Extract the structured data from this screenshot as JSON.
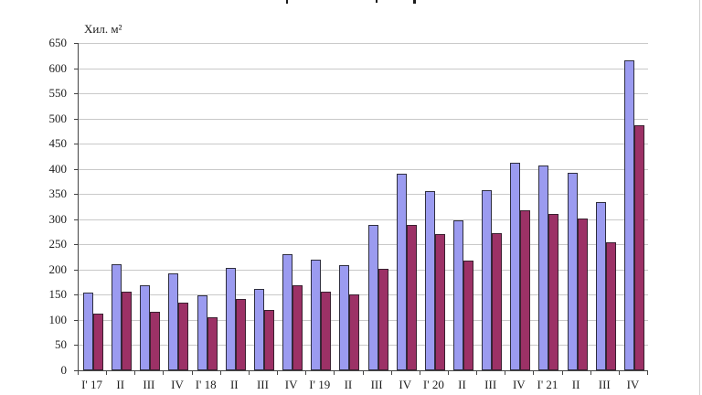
{
  "ylabel": "Хил. м²",
  "chart_data": {
    "type": "bar",
    "title": "",
    "title_clipped_at_top": true,
    "ylabel": "Хил. м²",
    "xlabel": "",
    "ylim": [
      0,
      650
    ],
    "y_tick_step": 50,
    "y_ticks": [
      0,
      50,
      100,
      150,
      200,
      250,
      300,
      350,
      400,
      450,
      500,
      550,
      600,
      650
    ],
    "grid": true,
    "legend": "none",
    "categories": [
      "I' 17",
      "II",
      "III",
      "IV",
      "I' 18",
      "II",
      "III",
      "IV",
      "I' 19",
      "II",
      "III",
      "IV",
      "I' 20",
      "II",
      "III",
      "IV",
      "I' 21",
      "II",
      "III",
      "IV"
    ],
    "series": [
      {
        "name": "blue",
        "color": "#9b9bf0",
        "values": [
          155,
          210,
          168,
          192,
          148,
          204,
          162,
          230,
          220,
          209,
          288,
          390,
          356,
          297,
          358,
          413,
          406,
          392,
          334,
          615
        ]
      },
      {
        "name": "maroon",
        "color": "#9c3166",
        "values": [
          113,
          157,
          117,
          134,
          106,
          142,
          119,
          168,
          156,
          150,
          202,
          288,
          271,
          217,
          272,
          318,
          311,
          301,
          255,
          487
        ]
      }
    ]
  },
  "colors": {
    "blue_fill": "#9b9bf0",
    "blue_border": "#2f2f3f",
    "maroon_fill": "#9c3166",
    "maroon_border": "#3a2030",
    "gridline": "#c9c9c9",
    "axis": "#454545",
    "text": "#1c1c1c",
    "frame": "#cfcfcf"
  }
}
